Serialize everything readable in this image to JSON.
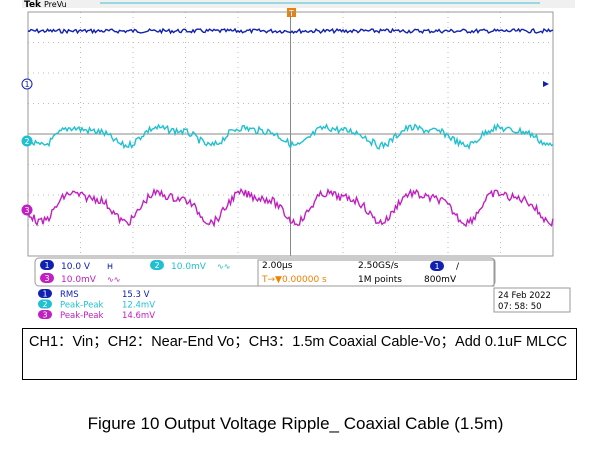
{
  "scope": {
    "brand": "Tek",
    "mode": "PreVu",
    "trigger_marker": "T",
    "channel_markers": [
      "1",
      "2",
      "3"
    ]
  },
  "status": {
    "channels": [
      {
        "badge": "1",
        "scale": "10.0 V",
        "coupling": "ᕼ"
      },
      {
        "badge": "2",
        "scale": "10.0mV",
        "coupling": "∿∿"
      },
      {
        "badge": "3",
        "scale": "10.0mV",
        "coupling": "∿∿"
      }
    ],
    "timebase": "2.00µs",
    "position": "T→▼0.00000 s",
    "sample_rate": "2.50GS/s",
    "record": "1M points",
    "trigger_channel": "1",
    "trigger_slope": "/",
    "trigger_level": "800mV",
    "measurements": [
      {
        "badge": "1",
        "name": "RMS",
        "value": "15.3 V"
      },
      {
        "badge": "2",
        "name": "Peak-Peak",
        "value": "12.4mV"
      },
      {
        "badge": "3",
        "name": "Peak-Peak",
        "value": "14.6mV"
      }
    ],
    "date": "24 Feb   2022",
    "time": "07: 58: 50"
  },
  "note": "CH1：Vin；CH2：Near-End Vo；CH3：1.5m Coaxial Cable-Vo；Add 0.1uF MLCC",
  "caption": "Figure 10 Output Voltage Ripple_ Coaxial Cable (1.5m)"
}
